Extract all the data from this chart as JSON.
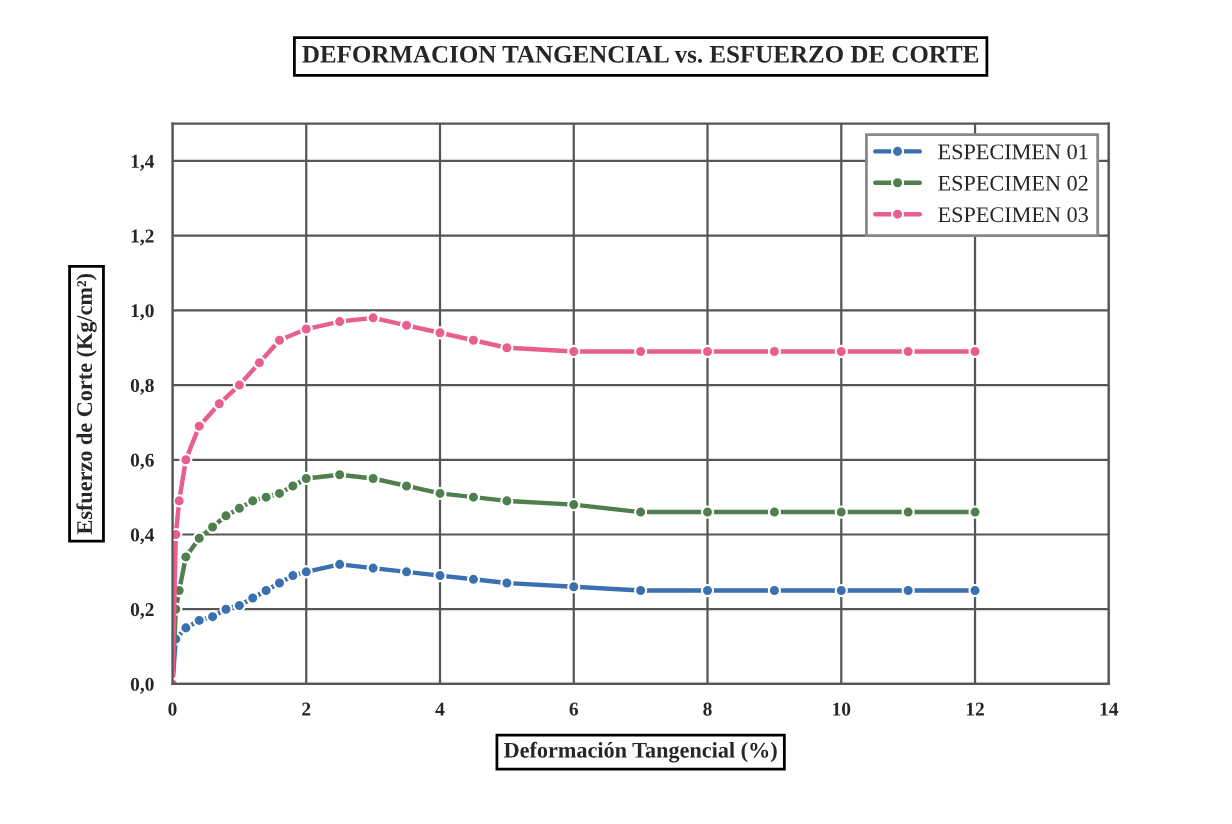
{
  "chart_data": {
    "type": "line",
    "title": "DEFORMACION TANGENCIAL vs. ESFUERZO DE CORTE",
    "xlabel": "Deformación Tangencial (%)",
    "ylabel": "Esfuerzo de Corte (Kg/cm²)",
    "series": [
      {
        "name": "ESPECIMEN 01",
        "color": "#3a6fb0",
        "x": [
          0,
          0.05,
          0.2,
          0.4,
          0.6,
          0.8,
          1.0,
          1.2,
          1.4,
          1.6,
          1.8,
          2.0,
          2.5,
          3.0,
          3.5,
          4.0,
          4.5,
          5.0,
          6.0,
          7.0,
          8.0,
          9.0,
          10.0,
          11.0,
          12.0
        ],
        "values": [
          0,
          0.12,
          0.15,
          0.17,
          0.18,
          0.2,
          0.21,
          0.23,
          0.25,
          0.27,
          0.29,
          0.3,
          0.32,
          0.31,
          0.3,
          0.29,
          0.28,
          0.27,
          0.26,
          0.25,
          0.25,
          0.25,
          0.25,
          0.25,
          0.25
        ]
      },
      {
        "name": "ESPECIMEN 02",
        "color": "#4f7f4f",
        "x": [
          0,
          0.05,
          0.1,
          0.2,
          0.4,
          0.6,
          0.8,
          1.0,
          1.2,
          1.4,
          1.6,
          1.8,
          2.0,
          2.5,
          3.0,
          3.5,
          4.0,
          4.5,
          5.0,
          6.0,
          7.0,
          8.0,
          9.0,
          10.0,
          11.0,
          12.0
        ],
        "values": [
          0,
          0.2,
          0.25,
          0.34,
          0.39,
          0.42,
          0.45,
          0.47,
          0.49,
          0.5,
          0.51,
          0.53,
          0.55,
          0.56,
          0.55,
          0.53,
          0.51,
          0.5,
          0.49,
          0.48,
          0.46,
          0.46,
          0.46,
          0.46,
          0.46,
          0.46
        ]
      },
      {
        "name": "ESPECIMEN 03",
        "color": "#e8608a",
        "x": [
          0,
          0.05,
          0.1,
          0.2,
          0.4,
          0.7,
          1.0,
          1.3,
          1.6,
          2.0,
          2.5,
          3.0,
          3.5,
          4.0,
          4.5,
          5.0,
          6.0,
          7.0,
          8.0,
          9.0,
          10.0,
          11.0,
          12.0
        ],
        "values": [
          0,
          0.4,
          0.49,
          0.6,
          0.69,
          0.75,
          0.8,
          0.86,
          0.92,
          0.95,
          0.97,
          0.98,
          0.96,
          0.94,
          0.92,
          0.9,
          0.89,
          0.89,
          0.89,
          0.89,
          0.89,
          0.89,
          0.89
        ]
      }
    ],
    "xlim": [
      0,
      14
    ],
    "xticks": [
      0,
      2,
      4,
      6,
      8,
      10,
      12,
      14
    ],
    "ylim": [
      0,
      1.5
    ],
    "yticks": [
      {
        "value": 0,
        "label": "0,0"
      },
      {
        "value": 0.2,
        "label": "0,2"
      },
      {
        "value": 0.4,
        "label": "0,4"
      },
      {
        "value": 0.6,
        "label": "0,6"
      },
      {
        "value": 0.8,
        "label": "0,8"
      },
      {
        "value": 1.0,
        "label": "1,0"
      },
      {
        "value": 1.2,
        "label": "1,2"
      },
      {
        "value": 1.4,
        "label": "1,4"
      }
    ],
    "grid": true,
    "legend": "top right",
    "marker": "circle",
    "line_style": "solid"
  }
}
